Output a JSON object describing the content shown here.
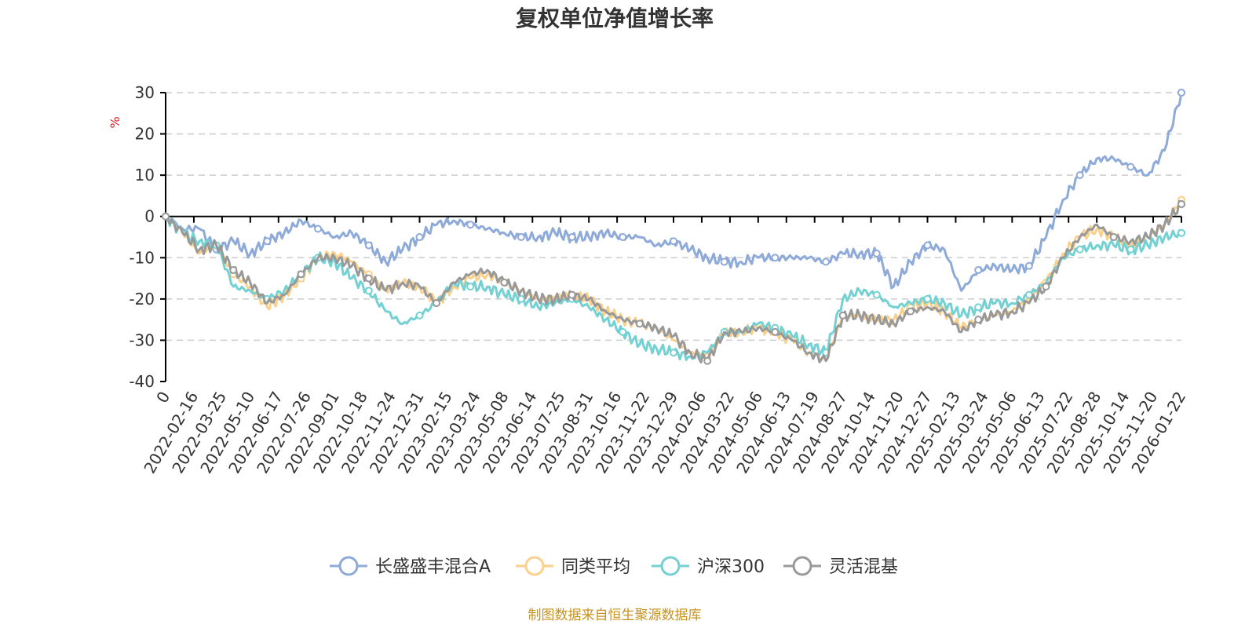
{
  "chart_data": {
    "type": "line",
    "title": "复权单位净值增长率",
    "ylabel": "%",
    "ylim": [
      -40,
      30
    ],
    "yticks": [
      30,
      20,
      10,
      0,
      -10,
      -20,
      -30,
      -40
    ],
    "x_ticks": [
      "0",
      "2022-02-16",
      "2022-03-25",
      "2022-05-10",
      "2022-06-17",
      "2022-07-26",
      "2022-09-01",
      "2022-10-18",
      "2022-11-24",
      "2022-12-31",
      "2023-02-15",
      "2023-03-24",
      "2023-05-08",
      "2023-06-14",
      "2023-07-25",
      "2023-08-31",
      "2023-10-16",
      "2023-11-22",
      "2023-12-29",
      "2024-02-06",
      "2024-03-22",
      "2024-05-06",
      "2024-06-13",
      "2024-07-19",
      "2024-08-27",
      "2024-10-14",
      "2024-11-20",
      "2024-12-27",
      "2025-02-13",
      "2025-03-24",
      "2025-05-06",
      "2025-06-13",
      "2025-07-22",
      "2025-08-28",
      "2025-10-14",
      "2025-11-20",
      "2026-01-22"
    ],
    "series": [
      {
        "name": "长盛盛丰混合A",
        "color": "#8eaad9",
        "values": [
          0,
          -3,
          -3,
          -8,
          -6,
          -9,
          -6,
          -4,
          -1,
          -3,
          -5,
          -4,
          -7,
          -11,
          -8,
          -5,
          -2,
          -1,
          -2,
          -3,
          -4,
          -5,
          -5,
          -4,
          -5,
          -5,
          -4,
          -5,
          -5,
          -7,
          -6,
          -8,
          -10,
          -11,
          -11,
          -10,
          -10,
          -10,
          -10,
          -11,
          -9,
          -9,
          -9,
          -17,
          -11,
          -7,
          -8,
          -18,
          -13,
          -12,
          -13,
          -12,
          -5,
          4,
          10,
          14,
          14,
          12,
          10,
          16,
          30
        ]
      },
      {
        "name": "同类平均",
        "color": "#fad08a",
        "values": [
          0,
          -4,
          -9,
          -7,
          -14,
          -17,
          -22,
          -19,
          -15,
          -10,
          -9,
          -11,
          -14,
          -18,
          -16,
          -17,
          -21,
          -17,
          -15,
          -14,
          -16,
          -18,
          -20,
          -20,
          -19,
          -20,
          -23,
          -25,
          -26,
          -27,
          -30,
          -33,
          -34,
          -28,
          -28,
          -27,
          -28,
          -30,
          -33,
          -35,
          -24,
          -24,
          -25,
          -25,
          -22,
          -21,
          -23,
          -27,
          -25,
          -24,
          -23,
          -20,
          -16,
          -9,
          -5,
          -3,
          -5,
          -7,
          -5,
          -2,
          4
        ]
      },
      {
        "name": "沪深300",
        "color": "#74d1d3",
        "values": [
          0,
          -4,
          -6,
          -7,
          -17,
          -18,
          -20,
          -18,
          -14,
          -10,
          -11,
          -15,
          -18,
          -23,
          -26,
          -24,
          -21,
          -16,
          -17,
          -17,
          -19,
          -20,
          -22,
          -21,
          -20,
          -22,
          -25,
          -28,
          -31,
          -32,
          -33,
          -34,
          -33,
          -28,
          -28,
          -26,
          -27,
          -29,
          -31,
          -33,
          -20,
          -18,
          -19,
          -22,
          -21,
          -20,
          -21,
          -24,
          -22,
          -21,
          -21,
          -19,
          -16,
          -10,
          -8,
          -7,
          -7,
          -8,
          -7,
          -5,
          -4
        ]
      },
      {
        "name": "灵活混基",
        "color": "#999999",
        "values": [
          0,
          -4,
          -8,
          -7,
          -13,
          -16,
          -21,
          -19,
          -14,
          -10,
          -10,
          -12,
          -15,
          -18,
          -16,
          -17,
          -21,
          -16,
          -14,
          -13,
          -16,
          -18,
          -20,
          -20,
          -19,
          -20,
          -23,
          -25,
          -26,
          -27,
          -29,
          -33,
          -35,
          -28,
          -28,
          -27,
          -28,
          -30,
          -33,
          -35,
          -24,
          -24,
          -25,
          -26,
          -23,
          -22,
          -23,
          -28,
          -25,
          -24,
          -23,
          -21,
          -17,
          -10,
          -5,
          -2,
          -5,
          -6,
          -5,
          -2,
          3
        ]
      }
    ],
    "legend_position": "bottom"
  },
  "footer": {
    "source_text": "制图数据来自恒生聚源数据库",
    "source_color": "#c8921e"
  }
}
